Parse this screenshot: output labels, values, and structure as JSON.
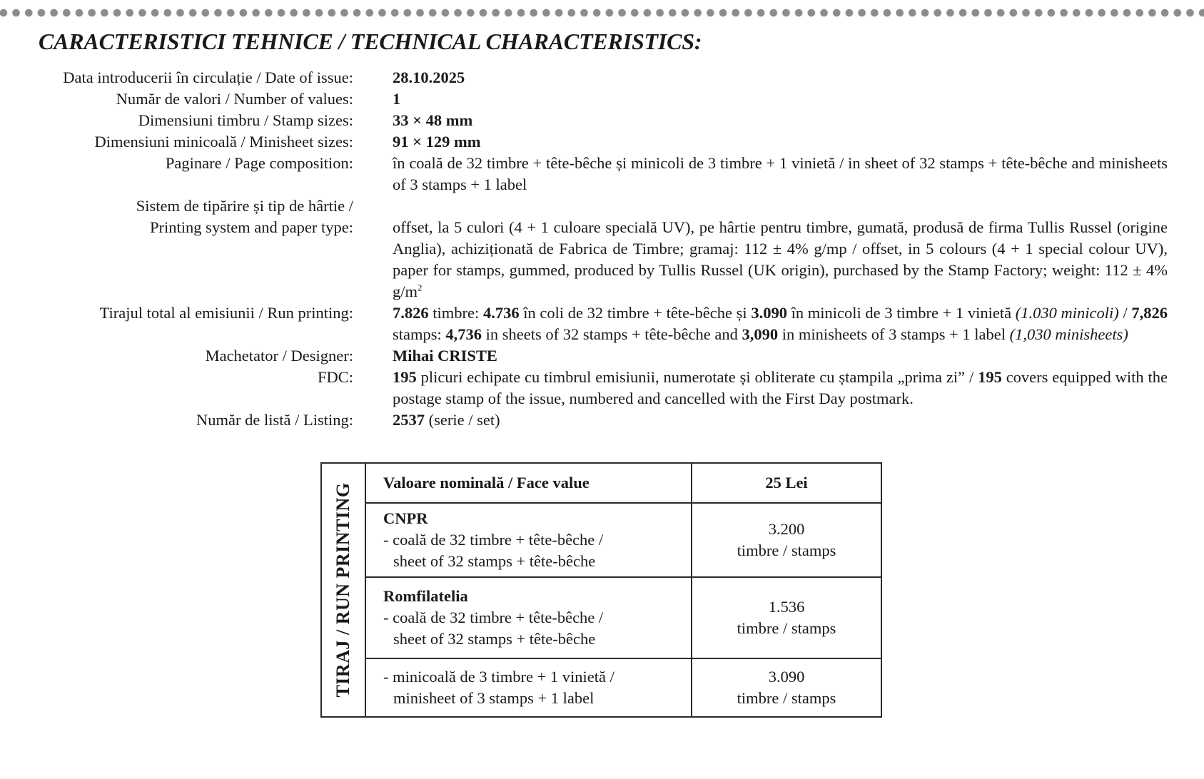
{
  "title": "CARACTERISTICI TEHNICE / TECHNICAL CHARACTERISTICS:",
  "specs": {
    "date": {
      "label": "Data introducerii în circulație / Date of issue:",
      "value": "28.10.2025"
    },
    "values": {
      "label": "Număr de valori / Number of values:",
      "value": "1"
    },
    "stamp_size": {
      "label": "Dimensiuni timbru / Stamp sizes:",
      "value": "33 × 48 mm"
    },
    "minisheet_size": {
      "label": "Dimensiuni minicoală / Minisheet sizes:",
      "value": "91 × 129 mm"
    },
    "page": {
      "label": "Paginare / Page composition:",
      "value": "în coală de 32 timbre + tête-bêche și minicoli de 3 timbre + 1 vinietă / in sheet of 32 stamps + tête-bêche and minisheets of 3 stamps + 1 label"
    },
    "printing": {
      "label1": "Sistem de tipărire și tip de hârtie /",
      "label2": "Printing system and paper type:",
      "value": "offset, la 5 culori (4 + 1 culoare specială UV), pe hârtie pentru timbre, gumată, produsă de firma Tullis Russel (origine Anglia), achiziționată de Fabrica de Timbre; gramaj: 112 ± 4% g/mp / offset, in 5 colours (4 + 1 special colour UV), paper for stamps, gummed, produced by Tullis Russel (UK origin), purchased by the Stamp Factory; weight: 112 ± 4% g/m",
      "sup": "2"
    },
    "run": {
      "label": "Tirajul total al emisiunii / Run printing:",
      "s": [
        "7.826",
        " timbre: ",
        "4.736",
        " în coli de 32 timbre + tête-bêche și ",
        "3.090",
        " în minicoli de 3 timbre + 1 vinietă ",
        "(1.030 minicoli)",
        " / ",
        "7,826",
        " stamps: ",
        "4,736",
        " in sheets of 32 stamps + tête-bêche and ",
        "3,090",
        " in minisheets of 3 stamps + 1 label ",
        "(1,030 minisheets)"
      ]
    },
    "designer": {
      "label": "Machetator / Designer:",
      "value": "Mihai CRISTE"
    },
    "fdc": {
      "label": "FDC:",
      "s": [
        "195",
        " plicuri echipate cu timbrul emisiunii, numerotate și obliterate cu ștampila „prima zi” / ",
        "195",
        " covers equipped with the postage stamp of the issue, numbered and cancelled with the First Day postmark."
      ]
    },
    "listing": {
      "label": "Număr de listă / Listing:",
      "number": "2537",
      "rest": " (serie / set)"
    }
  },
  "table": {
    "side_label": "TIRAJ / RUN PRINTING",
    "header": {
      "label": "Valoare nominală / Face value",
      "value": "25 Lei"
    },
    "rows": [
      {
        "name": "CNPR",
        "line1": "- coală de 32 timbre + tête-bêche /",
        "line2": "sheet of 32 stamps + tête-bêche",
        "count": "3.200",
        "unit": "timbre / stamps"
      },
      {
        "name": "Romfilatelia",
        "line1": "- coală de 32 timbre + tête-bêche /",
        "line2": "sheet of 32 stamps + tête-bêche",
        "count": "1.536",
        "unit": "timbre / stamps"
      },
      {
        "line1": "- minicoală de 3 timbre + 1 vinietă /",
        "line2": "minisheet of 3 stamps + 1 label",
        "count": "3.090",
        "unit": "timbre / stamps"
      }
    ]
  }
}
